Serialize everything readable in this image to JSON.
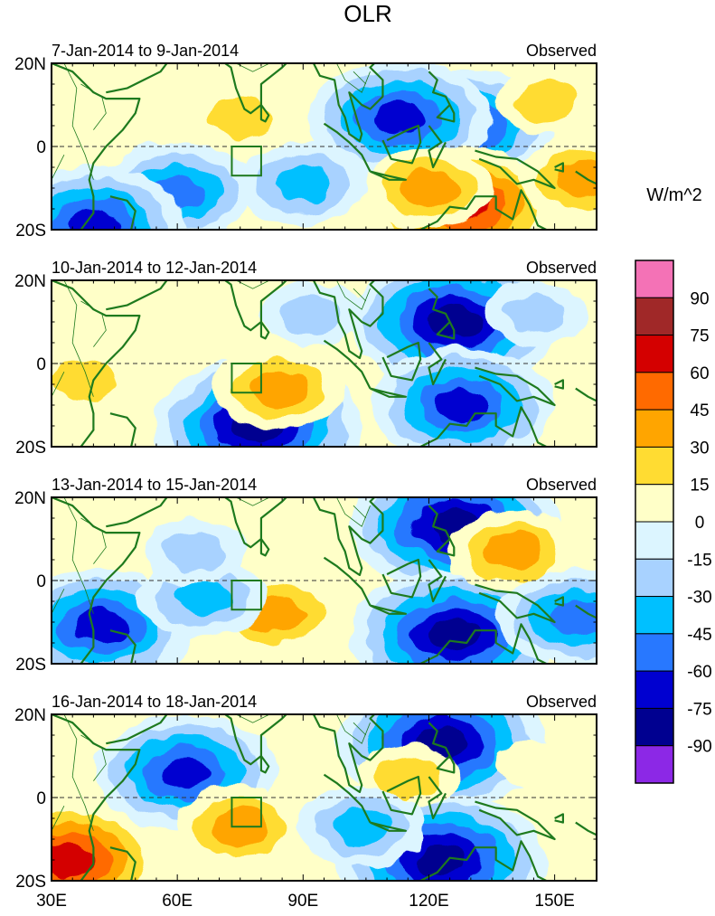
{
  "figure": {
    "title": "OLR",
    "colorbar_units": "W/m^2"
  },
  "chart_data": {
    "type": "heatmap",
    "title": "OLR",
    "variable": "OLR anomaly",
    "units": "W/m^2",
    "x_axis": {
      "range": [
        30,
        160
      ],
      "ticks": [
        30,
        60,
        90,
        120,
        150
      ],
      "tick_labels": [
        "30E",
        "60E",
        "90E",
        "120E",
        "150E"
      ]
    },
    "y_axis": {
      "range": [
        -20,
        20
      ],
      "ticks": [
        20,
        0,
        -20
      ],
      "tick_labels": [
        "20N",
        "0",
        "20S"
      ]
    },
    "colorbar": {
      "levels": [
        90,
        75,
        60,
        45,
        30,
        15,
        0,
        -15,
        -30,
        -45,
        -60,
        -75,
        -90
      ],
      "level_labels": [
        "90",
        "75",
        "60",
        "45",
        "30",
        "15",
        "0",
        "-15",
        "-30",
        "-45",
        "-60",
        "-75",
        "-90"
      ],
      "colors": [
        "#f472b6",
        "#a02828",
        "#d40000",
        "#ff6a00",
        "#ffa500",
        "#ffdc32",
        "#ffffc8",
        "#dcf5ff",
        "#a8d2ff",
        "#00c0ff",
        "#2878ff",
        "#0000d0",
        "#000090",
        "#8c28e6"
      ]
    },
    "panels": [
      {
        "period": "7-Jan-2014 to 9-Jan-2014",
        "source": "Observed",
        "features": [
          {
            "lon": 128,
            "lat": 5,
            "value": -75
          },
          {
            "lon": 113,
            "lat": 7,
            "value": -75
          },
          {
            "lon": 128,
            "lat": -14,
            "value": 75
          },
          {
            "lon": 120,
            "lat": -10,
            "value": 45
          },
          {
            "lon": 60,
            "lat": -11,
            "value": -60
          },
          {
            "lon": 90,
            "lat": -9,
            "value": -45
          },
          {
            "lon": 40,
            "lat": -19,
            "value": -75
          },
          {
            "lon": 75,
            "lat": 7,
            "value": 30
          },
          {
            "lon": 157,
            "lat": -8,
            "value": 45
          },
          {
            "lon": 148,
            "lat": 11,
            "value": 30
          }
        ]
      },
      {
        "period": "10-Jan-2014 to 12-Jan-2014",
        "source": "Observed",
        "features": [
          {
            "lon": 126,
            "lat": 10,
            "value": -90
          },
          {
            "lon": 79,
            "lat": -15,
            "value": -90
          },
          {
            "lon": 84,
            "lat": -6,
            "value": 45
          },
          {
            "lon": 118,
            "lat": -12,
            "value": 15
          },
          {
            "lon": 128,
            "lat": -10,
            "value": -75
          },
          {
            "lon": 38,
            "lat": -4,
            "value": 30
          },
          {
            "lon": 145,
            "lat": 12,
            "value": -30
          },
          {
            "lon": 92,
            "lat": 12,
            "value": -30
          }
        ]
      },
      {
        "period": "13-Jan-2014 to 15-Jan-2014",
        "source": "Observed",
        "features": [
          {
            "lon": 126,
            "lat": 13,
            "value": -90
          },
          {
            "lon": 126,
            "lat": -13,
            "value": -90
          },
          {
            "lon": 140,
            "lat": 7,
            "value": 45
          },
          {
            "lon": 84,
            "lat": -8,
            "value": 45
          },
          {
            "lon": 42,
            "lat": -11,
            "value": -75
          },
          {
            "lon": 66,
            "lat": -4,
            "value": -45
          },
          {
            "lon": 64,
            "lat": 7,
            "value": -30
          },
          {
            "lon": 155,
            "lat": -9,
            "value": -60
          }
        ]
      },
      {
        "period": "16-Jan-2014 to 18-Jan-2014",
        "source": "Observed",
        "features": [
          {
            "lon": 123,
            "lat": 13,
            "value": -90
          },
          {
            "lon": 123,
            "lat": -15,
            "value": -90
          },
          {
            "lon": 62,
            "lat": 6,
            "value": -75
          },
          {
            "lon": 75,
            "lat": -7,
            "value": 45
          },
          {
            "lon": 34,
            "lat": -15,
            "value": 75
          },
          {
            "lon": 115,
            "lat": 5,
            "value": 30
          },
          {
            "lon": 104,
            "lat": -7,
            "value": -45
          },
          {
            "lon": 145,
            "lat": 8,
            "value": 15
          }
        ]
      }
    ]
  }
}
